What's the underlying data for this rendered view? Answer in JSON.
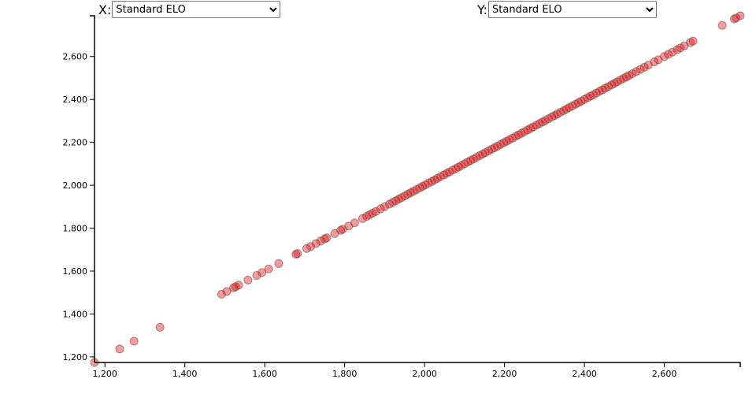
{
  "controls": {
    "x_label": "X:",
    "x_selected": "Standard ELO",
    "y_label": "Y:",
    "y_selected": "Standard ELO"
  },
  "chart_data": {
    "type": "scatter",
    "xlabel": "Standard ELO",
    "ylabel": "Standard ELO",
    "xlim": [
      1174,
      2790
    ],
    "ylim": [
      1174,
      2790
    ],
    "x_ticks": [
      "1,200",
      "1,400",
      "1,600",
      "1,800",
      "2,000",
      "2,200",
      "2,400",
      "2,600"
    ],
    "y_ticks": [
      "1,200",
      "1,400",
      "1,600",
      "1,800",
      "2,000",
      "2,200",
      "2,400",
      "2,600"
    ],
    "x_tick_values": [
      1200,
      1400,
      1600,
      1800,
      2000,
      2200,
      2400,
      2600
    ],
    "y_tick_values": [
      1200,
      1400,
      1600,
      1800,
      2000,
      2200,
      2400,
      2600
    ],
    "grid": false,
    "point_color": "#ff0000",
    "point_stroke": "#555555",
    "points": [
      [
        1174,
        1174
      ],
      [
        1237,
        1237
      ],
      [
        1273,
        1273
      ],
      [
        1338,
        1338
      ],
      [
        1492,
        1492
      ],
      [
        1505,
        1505
      ],
      [
        1522,
        1522
      ],
      [
        1527,
        1527
      ],
      [
        1535,
        1535
      ],
      [
        1558,
        1558
      ],
      [
        1580,
        1580
      ],
      [
        1593,
        1593
      ],
      [
        1610,
        1610
      ],
      [
        1635,
        1635
      ],
      [
        1678,
        1678
      ],
      [
        1682,
        1682
      ],
      [
        1705,
        1705
      ],
      [
        1715,
        1715
      ],
      [
        1728,
        1728
      ],
      [
        1740,
        1740
      ],
      [
        1750,
        1750
      ],
      [
        1755,
        1755
      ],
      [
        1775,
        1775
      ],
      [
        1790,
        1790
      ],
      [
        1795,
        1795
      ],
      [
        1810,
        1810
      ],
      [
        1825,
        1825
      ],
      [
        1845,
        1845
      ],
      [
        1855,
        1855
      ],
      [
        1862,
        1862
      ],
      [
        1870,
        1870
      ],
      [
        1878,
        1878
      ],
      [
        1890,
        1890
      ],
      [
        1900,
        1900
      ],
      [
        1912,
        1912
      ],
      [
        1920,
        1920
      ],
      [
        1928,
        1928
      ],
      [
        1935,
        1935
      ],
      [
        1942,
        1942
      ],
      [
        1950,
        1950
      ],
      [
        1958,
        1958
      ],
      [
        1965,
        1965
      ],
      [
        1972,
        1972
      ],
      [
        1980,
        1980
      ],
      [
        1988,
        1988
      ],
      [
        1995,
        1995
      ],
      [
        2002,
        2002
      ],
      [
        2010,
        2010
      ],
      [
        2018,
        2018
      ],
      [
        2025,
        2025
      ],
      [
        2032,
        2032
      ],
      [
        2040,
        2040
      ],
      [
        2048,
        2048
      ],
      [
        2055,
        2055
      ],
      [
        2062,
        2062
      ],
      [
        2070,
        2070
      ],
      [
        2078,
        2078
      ],
      [
        2085,
        2085
      ],
      [
        2092,
        2092
      ],
      [
        2100,
        2100
      ],
      [
        2108,
        2108
      ],
      [
        2115,
        2115
      ],
      [
        2122,
        2122
      ],
      [
        2130,
        2130
      ],
      [
        2138,
        2138
      ],
      [
        2145,
        2145
      ],
      [
        2152,
        2152
      ],
      [
        2160,
        2160
      ],
      [
        2168,
        2168
      ],
      [
        2175,
        2175
      ],
      [
        2182,
        2182
      ],
      [
        2190,
        2190
      ],
      [
        2198,
        2198
      ],
      [
        2205,
        2205
      ],
      [
        2212,
        2212
      ],
      [
        2220,
        2220
      ],
      [
        2228,
        2228
      ],
      [
        2235,
        2235
      ],
      [
        2242,
        2242
      ],
      [
        2250,
        2250
      ],
      [
        2258,
        2258
      ],
      [
        2265,
        2265
      ],
      [
        2272,
        2272
      ],
      [
        2280,
        2280
      ],
      [
        2288,
        2288
      ],
      [
        2295,
        2295
      ],
      [
        2302,
        2302
      ],
      [
        2310,
        2310
      ],
      [
        2318,
        2318
      ],
      [
        2325,
        2325
      ],
      [
        2332,
        2332
      ],
      [
        2340,
        2340
      ],
      [
        2348,
        2348
      ],
      [
        2355,
        2355
      ],
      [
        2362,
        2362
      ],
      [
        2370,
        2370
      ],
      [
        2378,
        2378
      ],
      [
        2385,
        2385
      ],
      [
        2392,
        2392
      ],
      [
        2400,
        2400
      ],
      [
        2408,
        2408
      ],
      [
        2415,
        2415
      ],
      [
        2422,
        2422
      ],
      [
        2430,
        2430
      ],
      [
        2438,
        2438
      ],
      [
        2445,
        2445
      ],
      [
        2452,
        2452
      ],
      [
        2460,
        2460
      ],
      [
        2468,
        2468
      ],
      [
        2475,
        2475
      ],
      [
        2482,
        2482
      ],
      [
        2490,
        2490
      ],
      [
        2498,
        2498
      ],
      [
        2505,
        2505
      ],
      [
        2512,
        2512
      ],
      [
        2520,
        2520
      ],
      [
        2530,
        2530
      ],
      [
        2540,
        2540
      ],
      [
        2550,
        2550
      ],
      [
        2560,
        2560
      ],
      [
        2575,
        2575
      ],
      [
        2585,
        2585
      ],
      [
        2600,
        2600
      ],
      [
        2610,
        2610
      ],
      [
        2620,
        2620
      ],
      [
        2632,
        2632
      ],
      [
        2640,
        2640
      ],
      [
        2650,
        2650
      ],
      [
        2665,
        2665
      ],
      [
        2672,
        2672
      ],
      [
        2745,
        2745
      ],
      [
        2775,
        2775
      ],
      [
        2780,
        2780
      ],
      [
        2790,
        2790
      ]
    ]
  }
}
